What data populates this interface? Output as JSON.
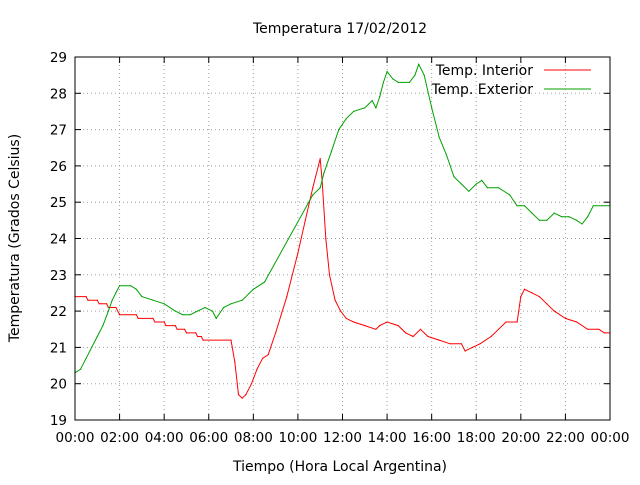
{
  "chart_data": {
    "type": "line",
    "title": "Temperatura 17/02/2012",
    "xlabel": "Tiempo (Hora Local Argentina)",
    "ylabel": "Temperatura (Grados Celsius)",
    "xlim": [
      "00:00",
      "24:00"
    ],
    "ylim": [
      19,
      29
    ],
    "x_tick_labels": [
      "00:00",
      "02:00",
      "04:00",
      "06:00",
      "08:00",
      "10:00",
      "12:00",
      "14:00",
      "16:00",
      "18:00",
      "20:00",
      "22:00",
      "00:00"
    ],
    "y_ticks": [
      19,
      20,
      21,
      22,
      23,
      24,
      25,
      26,
      27,
      28,
      29
    ],
    "grid": true,
    "legend_position": "top-right",
    "series": [
      {
        "name": "Temp. Interior",
        "color": "#ff0000",
        "points": [
          [
            "00:00",
            22.4
          ],
          [
            "00:30",
            22.4
          ],
          [
            "00:35",
            22.3
          ],
          [
            "01:00",
            22.3
          ],
          [
            "01:05",
            22.2
          ],
          [
            "01:25",
            22.2
          ],
          [
            "01:30",
            22.1
          ],
          [
            "01:50",
            22.1
          ],
          [
            "02:00",
            21.9
          ],
          [
            "02:45",
            21.9
          ],
          [
            "02:50",
            21.8
          ],
          [
            "03:30",
            21.8
          ],
          [
            "03:35",
            21.7
          ],
          [
            "04:00",
            21.7
          ],
          [
            "04:05",
            21.6
          ],
          [
            "04:30",
            21.6
          ],
          [
            "04:35",
            21.5
          ],
          [
            "04:55",
            21.5
          ],
          [
            "05:00",
            21.4
          ],
          [
            "05:25",
            21.4
          ],
          [
            "05:30",
            21.3
          ],
          [
            "05:40",
            21.3
          ],
          [
            "05:45",
            21.2
          ],
          [
            "07:00",
            21.2
          ],
          [
            "07:10",
            20.6
          ],
          [
            "07:20",
            19.7
          ],
          [
            "07:30",
            19.6
          ],
          [
            "07:40",
            19.7
          ],
          [
            "07:55",
            20.0
          ],
          [
            "08:10",
            20.4
          ],
          [
            "08:25",
            20.7
          ],
          [
            "08:40",
            20.8
          ],
          [
            "09:00",
            21.4
          ],
          [
            "09:30",
            22.4
          ],
          [
            "10:00",
            23.6
          ],
          [
            "10:20",
            24.5
          ],
          [
            "10:40",
            25.4
          ],
          [
            "11:00",
            26.2
          ],
          [
            "11:05",
            25.6
          ],
          [
            "11:15",
            24.0
          ],
          [
            "11:25",
            23.0
          ],
          [
            "11:40",
            22.3
          ],
          [
            "11:55",
            22.0
          ],
          [
            "12:10",
            21.8
          ],
          [
            "12:30",
            21.7
          ],
          [
            "13:00",
            21.6
          ],
          [
            "13:30",
            21.5
          ],
          [
            "13:40",
            21.6
          ],
          [
            "14:00",
            21.7
          ],
          [
            "14:30",
            21.6
          ],
          [
            "14:50",
            21.4
          ],
          [
            "15:10",
            21.3
          ],
          [
            "15:30",
            21.5
          ],
          [
            "15:50",
            21.3
          ],
          [
            "16:20",
            21.2
          ],
          [
            "16:50",
            21.1
          ],
          [
            "17:20",
            21.1
          ],
          [
            "17:30",
            20.9
          ],
          [
            "17:50",
            21.0
          ],
          [
            "18:10",
            21.1
          ],
          [
            "18:40",
            21.3
          ],
          [
            "19:00",
            21.5
          ],
          [
            "19:20",
            21.7
          ],
          [
            "19:50",
            21.7
          ],
          [
            "20:00",
            22.4
          ],
          [
            "20:10",
            22.6
          ],
          [
            "20:30",
            22.5
          ],
          [
            "20:50",
            22.4
          ],
          [
            "21:10",
            22.2
          ],
          [
            "21:30",
            22.0
          ],
          [
            "22:00",
            21.8
          ],
          [
            "22:30",
            21.7
          ],
          [
            "23:00",
            21.5
          ],
          [
            "23:30",
            21.5
          ],
          [
            "23:45",
            21.4
          ],
          [
            "24:00",
            21.4
          ]
        ]
      },
      {
        "name": "Temp. Exterior",
        "color": "#00a000",
        "points": [
          [
            "00:00",
            20.3
          ],
          [
            "00:15",
            20.4
          ],
          [
            "00:30",
            20.7
          ],
          [
            "00:45",
            21.0
          ],
          [
            "01:00",
            21.3
          ],
          [
            "01:15",
            21.6
          ],
          [
            "01:30",
            22.0
          ],
          [
            "01:40",
            22.3
          ],
          [
            "01:50",
            22.5
          ],
          [
            "02:00",
            22.7
          ],
          [
            "02:30",
            22.7
          ],
          [
            "02:45",
            22.6
          ],
          [
            "03:00",
            22.4
          ],
          [
            "03:30",
            22.3
          ],
          [
            "04:00",
            22.2
          ],
          [
            "04:30",
            22.0
          ],
          [
            "04:50",
            21.9
          ],
          [
            "05:10",
            21.9
          ],
          [
            "05:30",
            22.0
          ],
          [
            "05:50",
            22.1
          ],
          [
            "06:10",
            22.0
          ],
          [
            "06:20",
            21.8
          ],
          [
            "06:40",
            22.1
          ],
          [
            "07:00",
            22.2
          ],
          [
            "07:30",
            22.3
          ],
          [
            "08:00",
            22.6
          ],
          [
            "08:30",
            22.8
          ],
          [
            "10:40",
            25.2
          ],
          [
            "11:00",
            25.4
          ],
          [
            "11:10",
            25.8
          ],
          [
            "11:30",
            26.4
          ],
          [
            "11:50",
            27.0
          ],
          [
            "12:10",
            27.3
          ],
          [
            "12:30",
            27.5
          ],
          [
            "13:00",
            27.6
          ],
          [
            "13:10",
            27.7
          ],
          [
            "13:20",
            27.8
          ],
          [
            "13:30",
            27.6
          ],
          [
            "13:40",
            27.9
          ],
          [
            "13:50",
            28.3
          ],
          [
            "14:00",
            28.6
          ],
          [
            "14:15",
            28.4
          ],
          [
            "14:30",
            28.3
          ],
          [
            "15:00",
            28.3
          ],
          [
            "15:15",
            28.5
          ],
          [
            "15:25",
            28.8
          ],
          [
            "15:40",
            28.5
          ],
          [
            "16:00",
            27.6
          ],
          [
            "16:20",
            26.8
          ],
          [
            "16:40",
            26.3
          ],
          [
            "17:00",
            25.7
          ],
          [
            "17:20",
            25.5
          ],
          [
            "17:40",
            25.3
          ],
          [
            "18:00",
            25.5
          ],
          [
            "18:15",
            25.6
          ],
          [
            "18:30",
            25.4
          ],
          [
            "19:00",
            25.4
          ],
          [
            "19:30",
            25.2
          ],
          [
            "19:50",
            24.9
          ],
          [
            "20:10",
            24.9
          ],
          [
            "20:30",
            24.7
          ],
          [
            "20:50",
            24.5
          ],
          [
            "21:10",
            24.5
          ],
          [
            "21:30",
            24.7
          ],
          [
            "21:50",
            24.6
          ],
          [
            "22:10",
            24.6
          ],
          [
            "22:30",
            24.5
          ],
          [
            "22:45",
            24.4
          ],
          [
            "23:00",
            24.6
          ],
          [
            "23:15",
            24.9
          ],
          [
            "24:00",
            24.9
          ]
        ]
      }
    ]
  }
}
